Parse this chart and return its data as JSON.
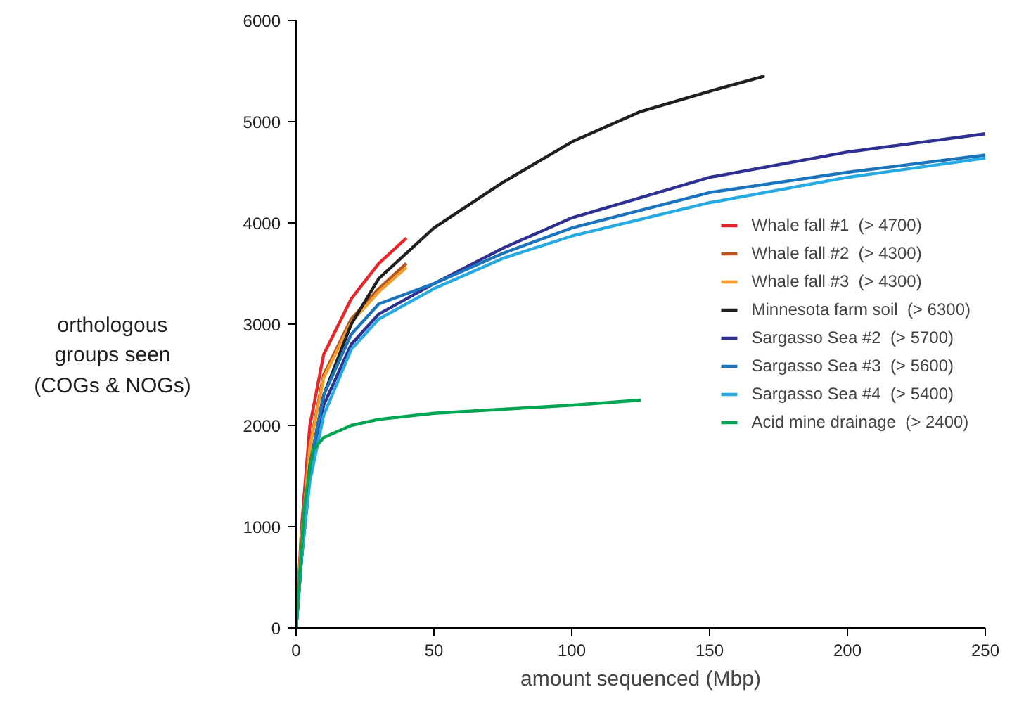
{
  "chart_data": {
    "type": "line",
    "xlabel": "amount sequenced (Mbp)",
    "ylabel": "orthologous\ngroups seen\n(COGs & NOGs)",
    "xlim": [
      0,
      250
    ],
    "ylim": [
      0,
      6000
    ],
    "xticks": [
      0,
      50,
      100,
      150,
      200,
      250
    ],
    "yticks": [
      0,
      1000,
      2000,
      3000,
      4000,
      5000,
      6000
    ],
    "grid": false,
    "legend": "right",
    "marker": "none",
    "line_style": "solid",
    "series": [
      {
        "name": "Whale fall #1  (> 4700)",
        "color": "#e8262a",
        "x": [
          0,
          2,
          5,
          10,
          20,
          30,
          40
        ],
        "values": [
          0,
          1000,
          2000,
          2700,
          3250,
          3600,
          3850
        ]
      },
      {
        "name": "Whale fall #2  (> 4300)",
        "color": "#b5561f",
        "x": [
          0,
          2,
          5,
          10,
          20,
          30,
          40
        ],
        "values": [
          0,
          900,
          1800,
          2500,
          3050,
          3350,
          3600
        ]
      },
      {
        "name": "Whale fall #3  (> 4300)",
        "color": "#f39c2b",
        "x": [
          0,
          2,
          5,
          10,
          20,
          30,
          40
        ],
        "values": [
          0,
          880,
          1780,
          2470,
          3020,
          3320,
          3560
        ]
      },
      {
        "name": "Minnesota farm soil  (> 6300)",
        "color": "#231f20",
        "x": [
          0,
          2,
          5,
          10,
          20,
          30,
          40,
          50,
          75,
          100,
          125,
          150,
          170
        ],
        "values": [
          0,
          700,
          1600,
          2300,
          3000,
          3450,
          3700,
          3950,
          4400,
          4800,
          5100,
          5300,
          5450
        ]
      },
      {
        "name": "Sargasso Sea #2  (> 5700)",
        "color": "#2e3192",
        "x": [
          0,
          2,
          5,
          10,
          20,
          30,
          50,
          75,
          100,
          150,
          200,
          250
        ],
        "values": [
          0,
          700,
          1500,
          2200,
          2800,
          3100,
          3400,
          3750,
          4050,
          4450,
          4700,
          4880
        ]
      },
      {
        "name": "Sargasso Sea #3  (> 5600)",
        "color": "#1c75bc",
        "x": [
          0,
          2,
          5,
          10,
          20,
          30,
          50,
          75,
          100,
          150,
          200,
          250
        ],
        "values": [
          0,
          750,
          1600,
          2300,
          2900,
          3200,
          3400,
          3700,
          3950,
          4300,
          4500,
          4670
        ]
      },
      {
        "name": "Sargasso Sea #4  (> 5400)",
        "color": "#27aae1",
        "x": [
          0,
          2,
          5,
          10,
          20,
          30,
          50,
          75,
          100,
          150,
          200,
          250
        ],
        "values": [
          0,
          700,
          1450,
          2100,
          2750,
          3050,
          3350,
          3650,
          3870,
          4200,
          4450,
          4640
        ]
      },
      {
        "name": "Acid mine drainage  (> 2400)",
        "color": "#00a651",
        "x": [
          0,
          3,
          6,
          10,
          20,
          30,
          50,
          75,
          100,
          125
        ],
        "values": [
          0,
          1200,
          1750,
          1880,
          2000,
          2060,
          2120,
          2160,
          2200,
          2250
        ]
      }
    ]
  }
}
